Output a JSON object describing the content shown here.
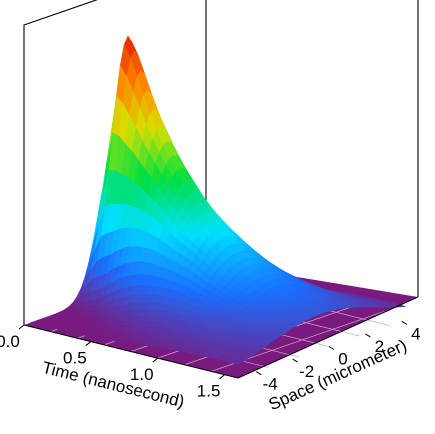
{
  "chart_data": {
    "type": "surface3d",
    "x_axis": {
      "label": "Time (nanosecond)",
      "ticks": [
        "0.0",
        "0.5",
        "1.0",
        "1.5"
      ],
      "range": [
        0,
        1.6
      ]
    },
    "y_axis": {
      "label": "Space (micrometer)",
      "ticks": [
        "-4",
        "-2",
        "0",
        "2",
        "4"
      ],
      "range": [
        -5,
        5
      ]
    },
    "z_axis": {
      "label": "",
      "range": [
        0,
        1
      ]
    },
    "floor_color": "#7a1a7e",
    "colormap": [
      "#7a1a7e",
      "#1a6fff",
      "#00e0ff",
      "#00e040",
      "#d8e000",
      "#ff8000",
      "#e01000"
    ],
    "peak": {
      "time": 0.12,
      "space": 0,
      "value": 1.0
    },
    "surface_model": {
      "description_of_shape": "peak near t≈0.1 ns at space 0, decaying in time while spreading in space",
      "time_samples": [
        0.0,
        0.1,
        0.2,
        0.3,
        0.4,
        0.5,
        0.6,
        0.7,
        0.8,
        0.9,
        1.0,
        1.1,
        1.2,
        1.3,
        1.4,
        1.5
      ],
      "peak_amplitude": [
        0.55,
        1.0,
        0.86,
        0.72,
        0.61,
        0.52,
        0.44,
        0.38,
        0.33,
        0.28,
        0.24,
        0.21,
        0.18,
        0.16,
        0.14,
        0.12
      ],
      "spatial_width": [
        0.9,
        0.9,
        1.0,
        1.15,
        1.3,
        1.45,
        1.6,
        1.75,
        1.9,
        2.05,
        2.2,
        2.35,
        2.5,
        2.65,
        2.8,
        2.95
      ]
    }
  }
}
